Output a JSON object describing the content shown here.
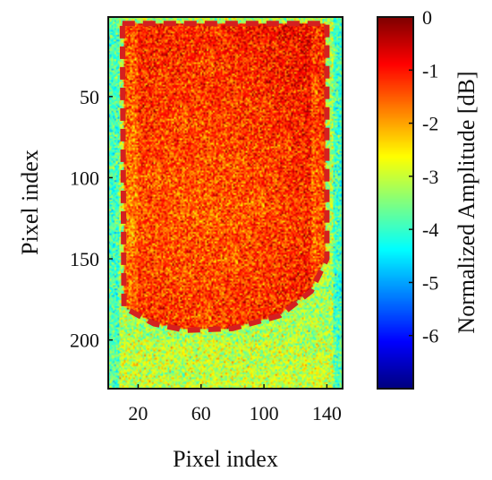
{
  "chart_data": {
    "type": "heatmap",
    "title": "",
    "xlabel": "Pixel index",
    "ylabel": "Pixel index",
    "xlim": [
      1,
      150
    ],
    "ylim": [
      1,
      230
    ],
    "y_reversed": true,
    "x_ticks": [
      20,
      60,
      100,
      140
    ],
    "y_ticks": [
      50,
      100,
      150,
      200
    ],
    "colorbar": {
      "label": "Normalized Amplitude [dB]",
      "range": [
        -7,
        0
      ],
      "ticks": [
        0,
        -1,
        -2,
        -3,
        -4,
        -5,
        -6
      ],
      "tick_labels": [
        "0",
        "-1",
        "-2",
        "-3",
        "-4",
        "-5",
        "-6"
      ],
      "colormap": "jet"
    },
    "grid": false,
    "overlay": {
      "type": "dashed-contour",
      "color": "#d42020",
      "points": [
        [
          10,
          5
        ],
        [
          140,
          5
        ],
        [
          140,
          150
        ],
        [
          130,
          170
        ],
        [
          110,
          185
        ],
        [
          80,
          193
        ],
        [
          50,
          194
        ],
        [
          30,
          190
        ],
        [
          11,
          180
        ],
        [
          10,
          5
        ]
      ]
    },
    "field_description": {
      "inner_level_db": -1.3,
      "outer_level_db": -3.2,
      "noise_db": 0.5
    }
  }
}
